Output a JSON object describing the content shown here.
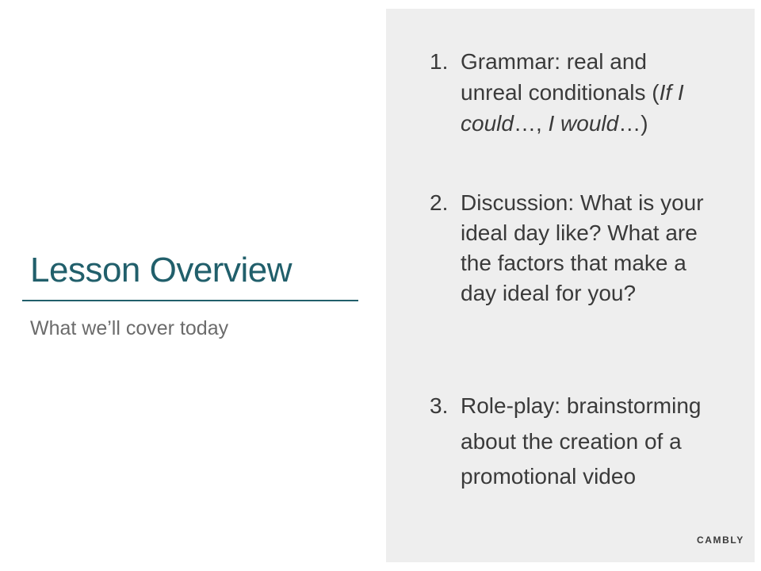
{
  "slide": {
    "title": "Lesson Overview",
    "subtitle": "What we’ll cover today"
  },
  "agenda": {
    "items": [
      {
        "number": "1.",
        "parts": [
          {
            "text": "Grammar: real and unreal conditionals (",
            "italic": false
          },
          {
            "text": "If I could",
            "italic": true
          },
          {
            "text": "…, ",
            "italic": false
          },
          {
            "text": "I would",
            "italic": true
          },
          {
            "text": "…)",
            "italic": false
          }
        ]
      },
      {
        "number": "2.",
        "parts": [
          {
            "text": "Discussion: What is your ideal day like? What are the factors that make a day ideal for you?",
            "italic": false
          }
        ]
      },
      {
        "number": "3.",
        "parts": [
          {
            "text": "Role-play: brainstorming about the creation of a promotional video",
            "italic": false
          }
        ]
      }
    ]
  },
  "brand": {
    "logo_text": "CAMBLY"
  },
  "colors": {
    "accent": "#215f6b",
    "panel_background": "#eeeeee",
    "body_text": "#3a3a3a",
    "subtitle_text": "#6b6b6b"
  }
}
